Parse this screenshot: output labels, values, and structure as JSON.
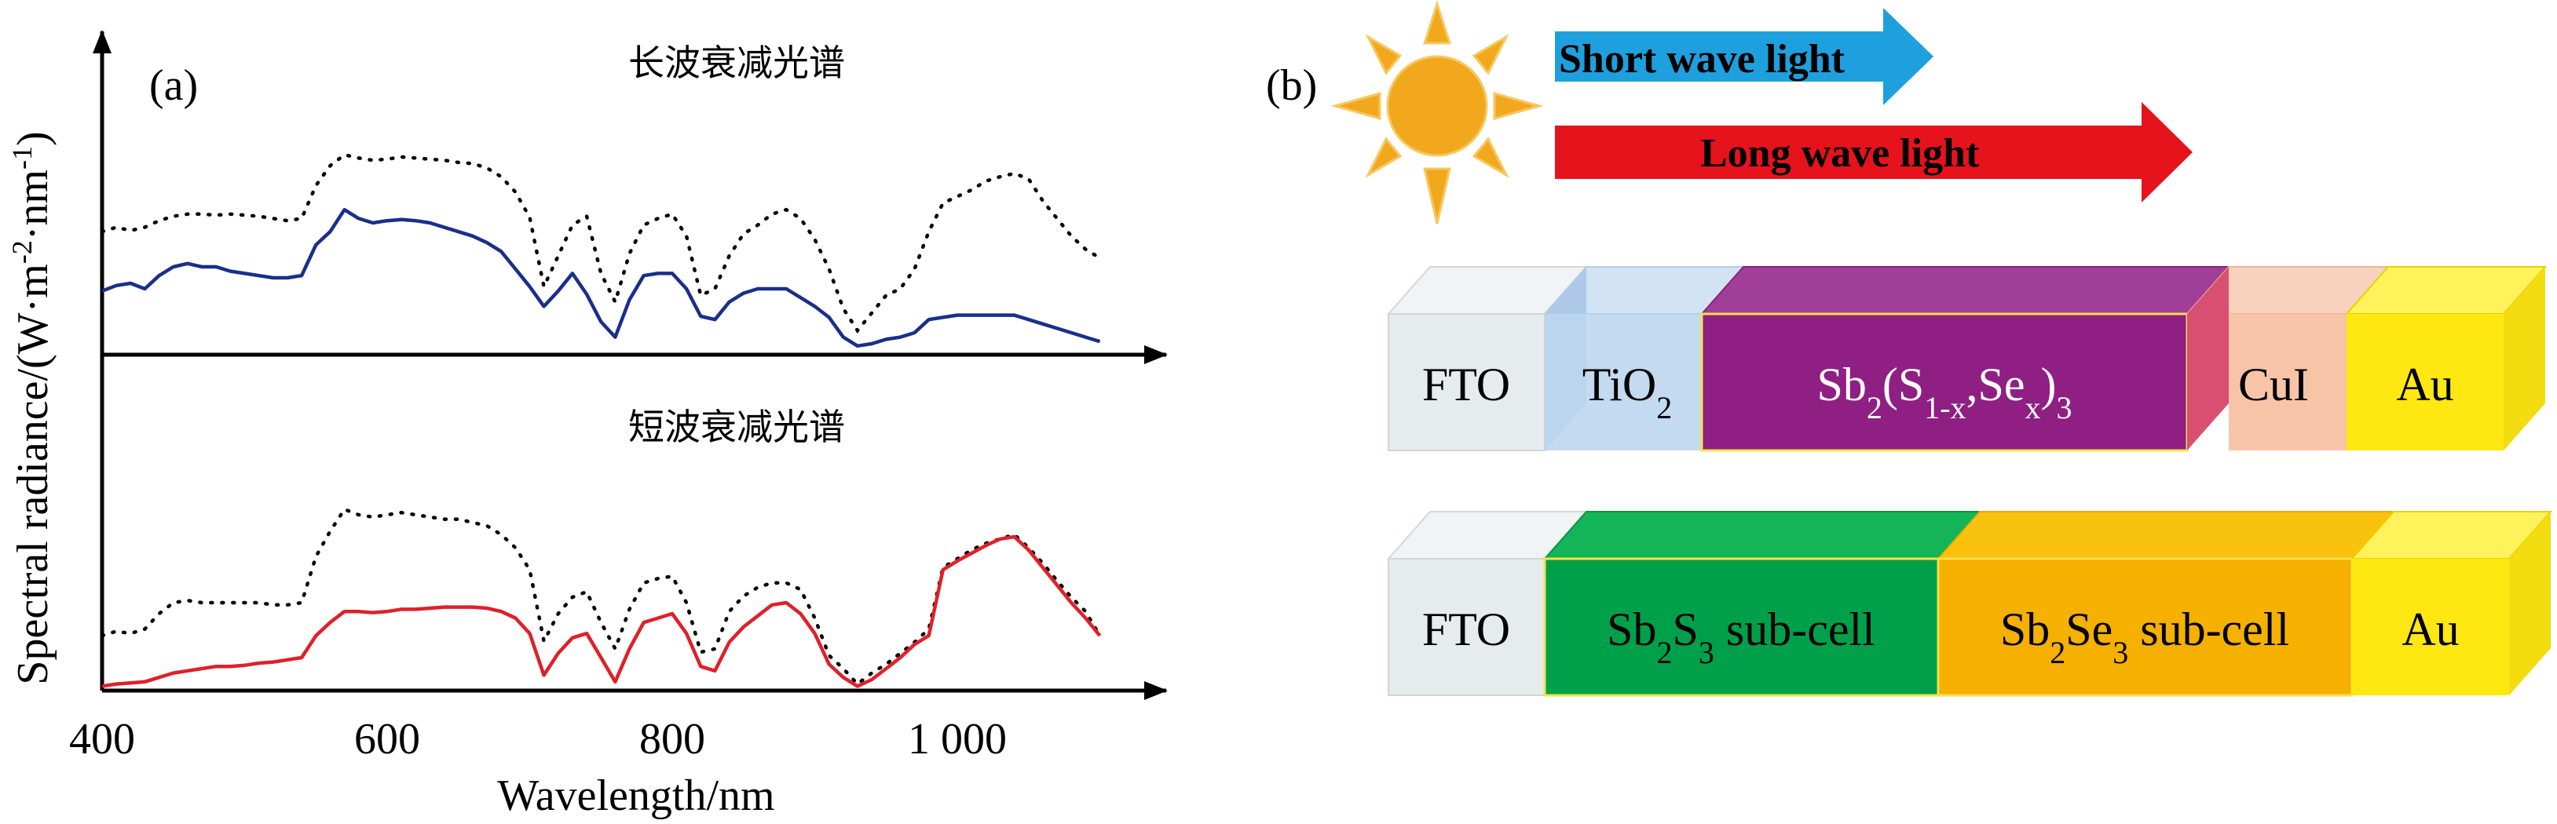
{
  "panel_a": {
    "label": "(a)",
    "ylabel": {
      "base": "Spectral radiance/(W·m",
      "exp1": "-2",
      "mid": "·nm",
      "exp2": "-1",
      "end": ")"
    },
    "xlabel": "Wavelength/nm",
    "x_ticks": [
      "400",
      "600",
      "800",
      "1 000"
    ],
    "top_caption": "长波衰减光谱",
    "bottom_caption": "短波衰减光谱"
  },
  "panel_b": {
    "label": "(b)",
    "short_wave": "Short wave light",
    "long_wave": "Long wave light",
    "stack1": {
      "fto": "FTO",
      "tio2": {
        "base": "TiO",
        "sub": "2"
      },
      "absorber": {
        "p1": "Sb",
        "s1": "2",
        "p2": "(S",
        "s2": "1-x",
        "p3": ",Se",
        "s3": "x",
        "p4": ")",
        "s4": "3"
      },
      "cui": "CuI",
      "au": "Au"
    },
    "stack2": {
      "fto": "FTO",
      "sub1": {
        "p1": "Sb",
        "s1": "2",
        "p2": "S",
        "s2": "3",
        "p3": " sub-cell"
      },
      "sub2": {
        "p1": "Sb",
        "s1": "2",
        "p2": "Se",
        "s2": "3",
        "p3": " sub-cell"
      },
      "au": "Au"
    }
  },
  "colors": {
    "long_wave_series": "#1a2f8a",
    "short_wave_series": "#e0202a",
    "reference_series": "#000000",
    "short_arrow": "#1ea0de",
    "long_arrow": "#e6121c",
    "sun": "#f2a81c",
    "fto": "#e6ebee",
    "tio2": "#bdd6ee",
    "absorber": "#8f1f83",
    "cui": "#f8c4a8",
    "au": "#ffe812",
    "sb2s3": "#00a04a",
    "sb2se3": "#f5b000"
  },
  "chart_data": {
    "type": "line",
    "x_range": [
      400,
      1100
    ],
    "xlabel": "Wavelength/nm",
    "panels": [
      {
        "caption": "长波衰减光谱",
        "series": [
          {
            "style": "dotted",
            "x": [
              400,
              410,
              420,
              430,
              440,
              450,
              460,
              470,
              480,
              490,
              500,
              510,
              520,
              530,
              540,
              550,
              560,
              570,
              580,
              590,
              600,
              610,
              620,
              630,
              640,
              650,
              660,
              670,
              680,
              690,
              700,
              710,
              720,
              730,
              740,
              750,
              760,
              770,
              780,
              790,
              800,
              810,
              820,
              830,
              840,
              850,
              860,
              870,
              880,
              890,
              900,
              910,
              920,
              930,
              940,
              950,
              960,
              970,
              980,
              990,
              1000,
              1010,
              1020,
              1030,
              1040,
              1050,
              1060,
              1070,
              1080,
              1090,
              1100
            ],
            "y": [
              1.12,
              1.16,
              1.13,
              1.16,
              1.22,
              1.26,
              1.28,
              1.28,
              1.27,
              1.28,
              1.27,
              1.26,
              1.24,
              1.22,
              1.24,
              1.54,
              1.72,
              1.82,
              1.79,
              1.77,
              1.78,
              1.8,
              1.79,
              1.78,
              1.77,
              1.75,
              1.74,
              1.7,
              1.62,
              1.48,
              1.25,
              0.62,
              0.9,
              1.18,
              1.26,
              0.74,
              0.48,
              0.92,
              1.18,
              1.24,
              1.28,
              1.08,
              0.54,
              0.6,
              0.9,
              1.1,
              1.18,
              1.28,
              1.32,
              1.24,
              1.05,
              0.78,
              0.42,
              0.22,
              0.38,
              0.54,
              0.6,
              0.78,
              1.12,
              1.38,
              1.44,
              1.5,
              1.58,
              1.62,
              1.65,
              1.6,
              1.4,
              1.24,
              1.08,
              0.96,
              0.88
            ]
          },
          {
            "style": "solid",
            "x": [
              400,
              410,
              420,
              430,
              440,
              450,
              460,
              470,
              480,
              490,
              500,
              510,
              520,
              530,
              540,
              550,
              560,
              570,
              580,
              590,
              600,
              610,
              620,
              630,
              640,
              650,
              660,
              670,
              680,
              690,
              700,
              710,
              720,
              730,
              740,
              750,
              760,
              770,
              780,
              790,
              800,
              810,
              820,
              830,
              840,
              850,
              860,
              870,
              880,
              890,
              900,
              910,
              920,
              930,
              940,
              950,
              960,
              970,
              980,
              990,
              1000,
              1010,
              1020,
              1030,
              1040,
              1050,
              1060,
              1070,
              1080,
              1090,
              1100
            ],
            "y": [
              0.58,
              0.63,
              0.65,
              0.6,
              0.72,
              0.8,
              0.83,
              0.8,
              0.8,
              0.76,
              0.74,
              0.72,
              0.7,
              0.7,
              0.72,
              1.0,
              1.12,
              1.32,
              1.24,
              1.2,
              1.22,
              1.23,
              1.22,
              1.2,
              1.16,
              1.12,
              1.08,
              1.02,
              0.94,
              0.78,
              0.62,
              0.44,
              0.58,
              0.74,
              0.55,
              0.3,
              0.16,
              0.5,
              0.72,
              0.74,
              0.74,
              0.6,
              0.35,
              0.32,
              0.48,
              0.56,
              0.6,
              0.6,
              0.6,
              0.52,
              0.44,
              0.34,
              0.16,
              0.08,
              0.1,
              0.14,
              0.16,
              0.2,
              0.32,
              0.34,
              0.36,
              0.36,
              0.36,
              0.36,
              0.36,
              0.32,
              0.28,
              0.24,
              0.2,
              0.16,
              0.12
            ]
          }
        ]
      },
      {
        "caption": "短波衰减光谱",
        "series": [
          {
            "style": "dotted",
            "x": [
              400,
              410,
              420,
              430,
              440,
              450,
              460,
              470,
              480,
              490,
              500,
              510,
              520,
              530,
              540,
              550,
              560,
              570,
              580,
              590,
              600,
              610,
              620,
              630,
              640,
              650,
              660,
              670,
              680,
              690,
              700,
              710,
              720,
              730,
              740,
              750,
              760,
              770,
              780,
              790,
              800,
              810,
              820,
              830,
              840,
              850,
              860,
              870,
              880,
              890,
              900,
              910,
              920,
              930,
              940,
              950,
              960,
              970,
              980,
              990,
              1000,
              1010,
              1020,
              1030,
              1040,
              1050,
              1060,
              1070,
              1080,
              1090,
              1100
            ],
            "y": [
              0.5,
              0.54,
              0.52,
              0.56,
              0.7,
              0.8,
              0.82,
              0.8,
              0.8,
              0.8,
              0.8,
              0.8,
              0.78,
              0.78,
              0.8,
              1.22,
              1.45,
              1.65,
              1.6,
              1.58,
              1.6,
              1.62,
              1.6,
              1.58,
              1.56,
              1.56,
              1.53,
              1.5,
              1.42,
              1.3,
              1.1,
              0.45,
              0.7,
              0.85,
              0.9,
              0.62,
              0.38,
              0.74,
              0.98,
              1.02,
              1.04,
              0.8,
              0.35,
              0.38,
              0.72,
              0.86,
              0.94,
              0.98,
              0.98,
              0.92,
              0.66,
              0.32,
              0.2,
              0.06,
              0.16,
              0.24,
              0.34,
              0.44,
              0.56,
              1.12,
              1.2,
              1.28,
              1.34,
              1.38,
              1.42,
              1.3,
              1.16,
              1.0,
              0.85,
              0.72,
              0.5
            ]
          },
          {
            "style": "solid",
            "x": [
              400,
              410,
              420,
              430,
              440,
              450,
              460,
              470,
              480,
              490,
              500,
              510,
              520,
              530,
              540,
              550,
              560,
              570,
              580,
              590,
              600,
              610,
              620,
              630,
              640,
              650,
              660,
              670,
              680,
              690,
              700,
              710,
              720,
              730,
              740,
              750,
              760,
              770,
              780,
              790,
              800,
              810,
              820,
              830,
              840,
              850,
              860,
              870,
              880,
              890,
              900,
              910,
              920,
              930,
              940,
              950,
              960,
              970,
              980,
              990,
              1000,
              1010,
              1020,
              1030,
              1040,
              1050,
              1060,
              1070,
              1080,
              1090,
              1100
            ],
            "y": [
              0.04,
              0.06,
              0.07,
              0.08,
              0.12,
              0.16,
              0.18,
              0.2,
              0.22,
              0.22,
              0.23,
              0.25,
              0.26,
              0.28,
              0.3,
              0.5,
              0.62,
              0.72,
              0.72,
              0.71,
              0.72,
              0.74,
              0.74,
              0.75,
              0.76,
              0.76,
              0.76,
              0.75,
              0.72,
              0.66,
              0.52,
              0.14,
              0.34,
              0.48,
              0.52,
              0.3,
              0.08,
              0.38,
              0.62,
              0.66,
              0.7,
              0.52,
              0.22,
              0.18,
              0.44,
              0.58,
              0.68,
              0.78,
              0.8,
              0.7,
              0.52,
              0.24,
              0.12,
              0.04,
              0.1,
              0.2,
              0.3,
              0.42,
              0.5,
              1.1,
              1.18,
              1.25,
              1.32,
              1.38,
              1.4,
              1.28,
              1.12,
              0.96,
              0.8,
              0.66,
              0.5
            ]
          }
        ]
      }
    ]
  }
}
